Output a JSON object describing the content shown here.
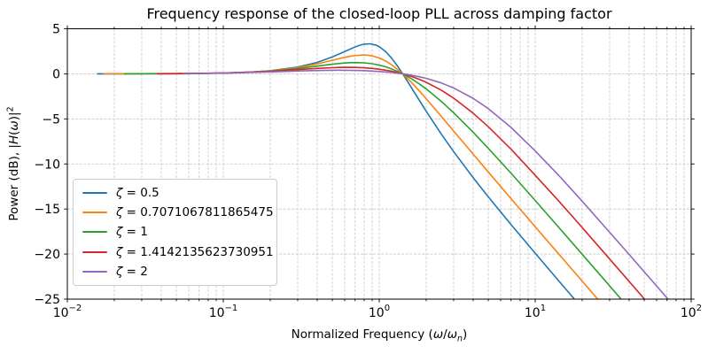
{
  "figure": {
    "background": "#ffffff"
  },
  "chart_data": {
    "type": "line",
    "title": "Frequency response of the closed-loop PLL across damping factor",
    "xlabel": {
      "parts": [
        "Normalized Frequency (",
        "ω",
        "/",
        "ω",
        "n",
        ")"
      ]
    },
    "ylabel": {
      "parts": [
        "Power (dB), |",
        "H",
        "(",
        "ω",
        ")|",
        "2"
      ]
    },
    "x_scale": "log",
    "xlim": [
      0.01,
      100
    ],
    "ylim": [
      -25,
      5
    ],
    "grid": {
      "visible": true,
      "style": "dashed",
      "color": "#c6c6c6",
      "minor_x": true
    },
    "tick_base": "10",
    "x_ticks": [
      {
        "exp": "−2",
        "value": 0.01
      },
      {
        "exp": "−1",
        "value": 0.1
      },
      {
        "exp": "0",
        "value": 1
      },
      {
        "exp": "1",
        "value": 10
      },
      {
        "exp": "2",
        "value": 100
      }
    ],
    "y_ticks": [
      {
        "label": "5",
        "value": 5
      },
      {
        "label": "0",
        "value": 0
      },
      {
        "label": "−5",
        "value": -5
      },
      {
        "label": "−10",
        "value": -10
      },
      {
        "label": "−15",
        "value": -15
      },
      {
        "label": "−20",
        "value": -20
      },
      {
        "label": "−25",
        "value": -25
      }
    ],
    "legend": {
      "position": "lower left",
      "symbol": "ζ",
      "equals": " = "
    },
    "series": [
      {
        "label": "ζ = 0.5",
        "zeta_value": "0.5",
        "color": "#1f77b4",
        "points": [
          [
            0.0155,
            0
          ],
          [
            0.02,
            0
          ],
          [
            0.03,
            0.01
          ],
          [
            0.05,
            0.02
          ],
          [
            0.07,
            0.04
          ],
          [
            0.1,
            0.09
          ],
          [
            0.15,
            0.19
          ],
          [
            0.2,
            0.34
          ],
          [
            0.3,
            0.75
          ],
          [
            0.4,
            1.27
          ],
          [
            0.5,
            1.87
          ],
          [
            0.6,
            2.47
          ],
          [
            0.7,
            2.98
          ],
          [
            0.75,
            3.17
          ],
          [
            0.8,
            3.29
          ],
          [
            0.87,
            3.33
          ],
          [
            0.95,
            3.19
          ],
          [
            1.0,
            3.01
          ],
          [
            1.1,
            2.46
          ],
          [
            1.2,
            1.74
          ],
          [
            1.3,
            0.94
          ],
          [
            1.414,
            0
          ],
          [
            1.6,
            -1.47
          ],
          [
            1.8,
            -2.9
          ],
          [
            2.0,
            -4.15
          ],
          [
            2.5,
            -6.69
          ],
          [
            3.0,
            -8.63
          ],
          [
            4.0,
            -11.52
          ],
          [
            5.0,
            -13.64
          ],
          [
            7.0,
            -16.73
          ],
          [
            10,
            -19.91
          ],
          [
            14,
            -22.88
          ],
          [
            19,
            -25.55
          ]
        ]
      },
      {
        "label": "ζ = 0.7071067811865475",
        "zeta_value": "0.7071067811865475",
        "color": "#ff7f0e",
        "points": [
          [
            0.017,
            0
          ],
          [
            0.03,
            0.01
          ],
          [
            0.05,
            0.02
          ],
          [
            0.1,
            0.09
          ],
          [
            0.15,
            0.19
          ],
          [
            0.2,
            0.33
          ],
          [
            0.3,
            0.68
          ],
          [
            0.4,
            1.1
          ],
          [
            0.5,
            1.5
          ],
          [
            0.6,
            1.83
          ],
          [
            0.65,
            1.95
          ],
          [
            0.7,
            2.03
          ],
          [
            0.79,
            2.09
          ],
          [
            0.85,
            2.06
          ],
          [
            0.9,
            1.99
          ],
          [
            1.0,
            1.76
          ],
          [
            1.1,
            1.42
          ],
          [
            1.2,
            1.01
          ],
          [
            1.414,
            0
          ],
          [
            1.6,
            -0.91
          ],
          [
            1.8,
            -1.87
          ],
          [
            2.0,
            -2.76
          ],
          [
            2.5,
            -4.72
          ],
          [
            3.0,
            -6.35
          ],
          [
            4.0,
            -8.91
          ],
          [
            5.0,
            -10.89
          ],
          [
            7.0,
            -13.85
          ],
          [
            10,
            -16.97
          ],
          [
            14,
            -19.9
          ],
          [
            20,
            -23.0
          ],
          [
            27,
            -25.61
          ]
        ]
      },
      {
        "label": "ζ = 1",
        "zeta_value": "1",
        "color": "#2ca02c",
        "points": [
          [
            0.023,
            0
          ],
          [
            0.05,
            0.02
          ],
          [
            0.1,
            0.08
          ],
          [
            0.15,
            0.18
          ],
          [
            0.2,
            0.3
          ],
          [
            0.3,
            0.59
          ],
          [
            0.4,
            0.86
          ],
          [
            0.5,
            1.07
          ],
          [
            0.6,
            1.2
          ],
          [
            0.65,
            1.24
          ],
          [
            0.71,
            1.25
          ],
          [
            0.8,
            1.22
          ],
          [
            0.9,
            1.12
          ],
          [
            1.0,
            0.97
          ],
          [
            1.1,
            0.78
          ],
          [
            1.2,
            0.55
          ],
          [
            1.414,
            0
          ],
          [
            1.6,
            -0.52
          ],
          [
            1.8,
            -1.1
          ],
          [
            2.0,
            -1.67
          ],
          [
            2.5,
            -3.06
          ],
          [
            3.0,
            -4.32
          ],
          [
            4.0,
            -6.48
          ],
          [
            5.0,
            -8.26
          ],
          [
            7.0,
            -11.03
          ],
          [
            10,
            -14.05
          ],
          [
            14,
            -16.94
          ],
          [
            20,
            -20.02
          ],
          [
            28,
            -22.93
          ],
          [
            38,
            -25.58
          ]
        ]
      },
      {
        "label": "ζ = 1.4142135623730951",
        "zeta_value": "1.4142135623730951",
        "color": "#d62728",
        "points": [
          [
            0.0375,
            0
          ],
          [
            0.05,
            0.01
          ],
          [
            0.1,
            0.08
          ],
          [
            0.2,
            0.27
          ],
          [
            0.3,
            0.46
          ],
          [
            0.4,
            0.6
          ],
          [
            0.5,
            0.68
          ],
          [
            0.55,
            0.71
          ],
          [
            0.63,
            0.72
          ],
          [
            0.71,
            0.71
          ],
          [
            0.8,
            0.67
          ],
          [
            0.9,
            0.6
          ],
          [
            1.0,
            0.51
          ],
          [
            1.2,
            0.29
          ],
          [
            1.414,
            0
          ],
          [
            1.6,
            -0.28
          ],
          [
            1.8,
            -0.6
          ],
          [
            2.0,
            -0.94
          ],
          [
            2.5,
            -1.82
          ],
          [
            3.0,
            -2.7
          ],
          [
            4.0,
            -4.37
          ],
          [
            5.0,
            -5.87
          ],
          [
            7.0,
            -8.36
          ],
          [
            10,
            -11.26
          ],
          [
            14,
            -14.02
          ],
          [
            20,
            -17.05
          ],
          [
            28,
            -19.95
          ],
          [
            40,
            -23.03
          ],
          [
            54,
            -25.63
          ]
        ]
      },
      {
        "label": "ζ = 2",
        "zeta_value": "2",
        "color": "#9467bd",
        "points": [
          [
            0.055,
            0
          ],
          [
            0.1,
            0.08
          ],
          [
            0.2,
            0.21
          ],
          [
            0.3,
            0.32
          ],
          [
            0.4,
            0.37
          ],
          [
            0.54,
            0.4
          ],
          [
            0.62,
            0.39
          ],
          [
            0.7,
            0.38
          ],
          [
            0.8,
            0.35
          ],
          [
            1.0,
            0.26
          ],
          [
            1.2,
            0.15
          ],
          [
            1.414,
            0
          ],
          [
            1.6,
            -0.15
          ],
          [
            1.8,
            -0.32
          ],
          [
            2.0,
            -0.5
          ],
          [
            2.5,
            -1.01
          ],
          [
            3.0,
            -1.57
          ],
          [
            4.0,
            -2.72
          ],
          [
            5.0,
            -3.86
          ],
          [
            7.0,
            -5.95
          ],
          [
            10,
            -8.56
          ],
          [
            14,
            -11.18
          ],
          [
            20,
            -14.13
          ],
          [
            28,
            -17.0
          ],
          [
            40,
            -20.04
          ],
          [
            56,
            -22.94
          ],
          [
            76,
            -25.58
          ]
        ]
      }
    ]
  }
}
